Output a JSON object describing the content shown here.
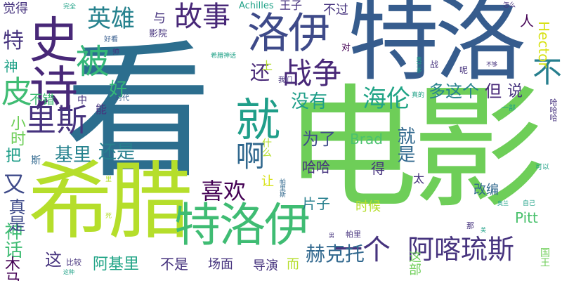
{
  "words": {
    "kan": "看",
    "dianying": "电影",
    "teluo": "特洛",
    "xila": "希腊",
    "teluoyi_big": "特洛伊",
    "luoyi": "洛伊",
    "jiu": "就",
    "yibu": "史诗",
    "bei": "被",
    "pi": "皮",
    "lisi": "里斯",
    "yingxiong": "英雄",
    "gushi": "故事",
    "zhanzheng": "战争",
    "akalisi": "阿喀琉斯",
    "yige": "一个",
    "xihuan": "喜欢",
    "a": "啊",
    "bu": "不",
    "hailun": "海伦",
    "haike": "赫克托",
    "shenhua": "神话",
    "mama": "木马",
    "jiuyou": "就是",
    "te": "特",
    "shen": "神",
    "you": "又",
    "zhen": "真是",
    "haihao": "还是",
    "jili": "基里",
    "ba": "把",
    "si": "斯",
    "xiaoshi": "小时",
    "haoma": "还",
    "hao": "好",
    "meiyou": "没有",
    "duozhege": "多这个",
    "dan": "但",
    "shuo": "说",
    "weile": "为了",
    "brad": "Brad",
    "pitt": "Pitt",
    "hector": "Hector",
    "haha": "哈哈",
    "de": "得",
    "pianzi": "片子",
    "shihou": "时候",
    "gaibian": "改编",
    "tai": "太",
    "zhe": "这",
    "ajili": "阿基里",
    "bushi": "不是",
    "changmian": "场面",
    "daoyan": "导演",
    "er": "而",
    "zhebu": "这部",
    "guowang": "国王",
    "achilles": "Achilles",
    "wangzi": "王子",
    "buguo": "不过",
    "ren": "人",
    "yu": "与",
    "juede": "觉得",
    "wanquan": "完全",
    "yingyuan": "影院",
    "haokan": "好看",
    "shuai": "帅",
    "dui": "对",
    "xilashenhua": "希腊神话",
    "women": "我们",
    "zhan": "战",
    "ne": "呢",
    "bugou": "不够",
    "zenme": "怎么",
    "aoke": "奥兰多",
    "zhong": "中",
    "shidai": "时代",
    "zhende": "真的",
    "nen": "能",
    "bucuo": "不错",
    "yibu2": "一部",
    "hahaha": "哈哈哈",
    "keyi": "可以",
    "zhege": "这个",
    "ziji": "自己",
    "aolan": "奥兰",
    "mei": "美",
    "nan": "男",
    "pali": "帕里",
    "na": "那",
    "shi": "什么",
    "rang": "让",
    "palisi": "帕里斯",
    "li": "里",
    "si2": "死",
    "bijiao": "比较",
    "zhezhong": "这种",
    "shangyi": "上"
  }
}
